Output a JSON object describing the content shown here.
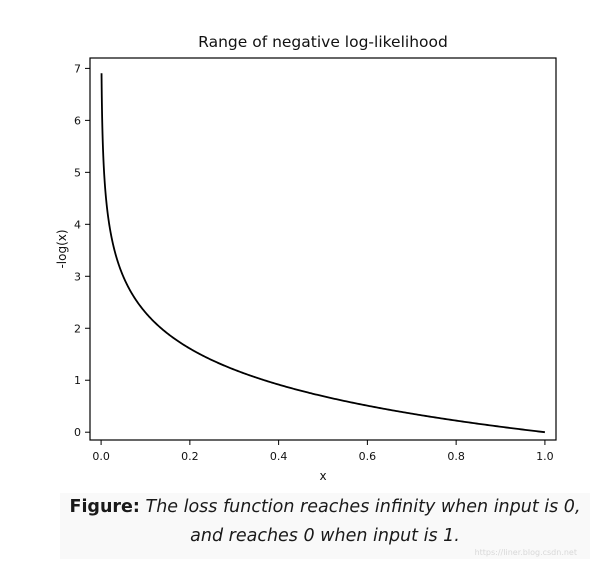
{
  "chart_data": {
    "type": "line",
    "title": "Range of negative log-likelihood",
    "xlabel": "x",
    "ylabel": "-log(x)",
    "xlim": [
      -0.025,
      1.025
    ],
    "ylim": [
      -0.15,
      7.2
    ],
    "xticks": [
      "0.0",
      "0.2",
      "0.4",
      "0.6",
      "0.8",
      "1.0"
    ],
    "yticks": [
      "0",
      "1",
      "2",
      "3",
      "4",
      "5",
      "6",
      "7"
    ],
    "grid": false,
    "series": [
      {
        "function": "-log(x)",
        "x_range": [
          0.001,
          1.0
        ],
        "color": "#000000"
      }
    ]
  },
  "caption": {
    "lead": "Figure:",
    "text": "The loss function reaches infinity when input is 0, and reaches 0 when input is 1."
  },
  "watermark": "https://liner.blog.csdn.net"
}
